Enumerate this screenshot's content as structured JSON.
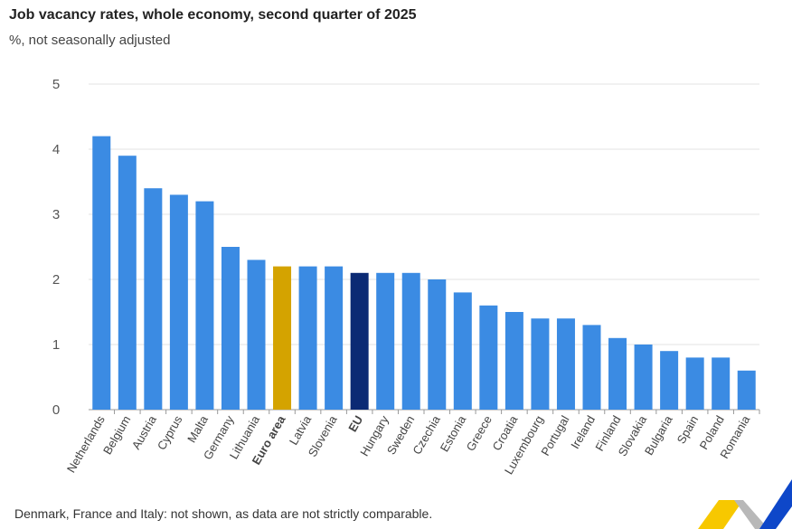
{
  "chart_data": {
    "type": "bar",
    "title": "Job vacancy rates, whole economy, second quarter of 2025",
    "subtitle": "%, not seasonally adjusted",
    "note": "Denmark, France and Italy: not shown, as data are not strictly comparable.",
    "categories": [
      "Netherlands",
      "Belgium",
      "Austria",
      "Cyprus",
      "Malta",
      "Germany",
      "Lithuania",
      "Euro area",
      "Latvia",
      "Slovenia",
      "EU",
      "Hungary",
      "Sweden",
      "Czechia",
      "Estonia",
      "Greece",
      "Croatia",
      "Luxembourg",
      "Portugal",
      "Ireland",
      "Finland",
      "Slovakia",
      "Bulgaria",
      "Spain",
      "Poland",
      "Romania"
    ],
    "values": [
      4.2,
      3.9,
      3.4,
      3.3,
      3.2,
      2.5,
      2.3,
      2.2,
      2.2,
      2.2,
      2.1,
      2.1,
      2.1,
      2.0,
      1.8,
      1.6,
      1.5,
      1.4,
      1.4,
      1.3,
      1.1,
      1.0,
      0.9,
      0.8,
      0.8,
      0.6
    ],
    "highlighted": {
      "Euro area": "#d4a300",
      "EU": "#0b2a74"
    },
    "bold_categories": [
      "Euro area",
      "EU"
    ],
    "default_color": "#3b8be3",
    "ylim": [
      0,
      5
    ],
    "yticks": [
      "0",
      "1",
      "2",
      "3",
      "4",
      "5"
    ],
    "grid": true,
    "legend": "none"
  }
}
